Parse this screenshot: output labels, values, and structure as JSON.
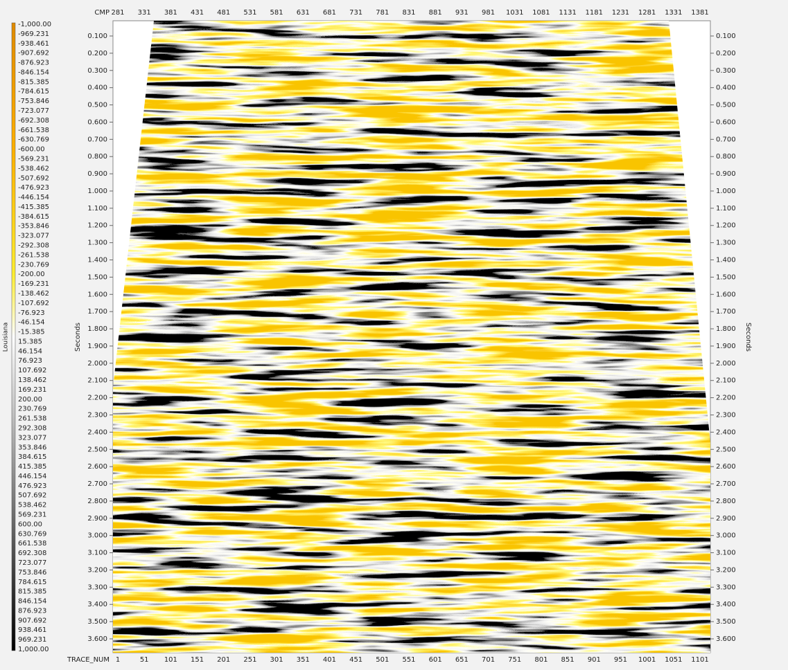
{
  "colorbar": {
    "title": "Louisiana",
    "labels": [
      "-1,000.00",
      "-969.231",
      "-938.461",
      "-907.692",
      "-876.923",
      "-846.154",
      "-815.385",
      "-784.615",
      "-753.846",
      "-723.077",
      "-692.308",
      "-661.538",
      "-630.769",
      "-600.00",
      "-569.231",
      "-538.462",
      "-507.692",
      "-476.923",
      "-446.154",
      "-415.385",
      "-384.615",
      "-353.846",
      "-323.077",
      "-292.308",
      "-261.538",
      "-230.769",
      "-200.00",
      "-169.231",
      "-138.462",
      "-107.692",
      "-76.923",
      "-46.154",
      "-15.385",
      "15.385",
      "46.154",
      "76.923",
      "107.692",
      "138.462",
      "169.231",
      "200.00",
      "230.769",
      "261.538",
      "292.308",
      "323.077",
      "353.846",
      "384.615",
      "415.385",
      "446.154",
      "476.923",
      "507.692",
      "538.462",
      "569.231",
      "600.00",
      "630.769",
      "661.538",
      "692.308",
      "723.077",
      "753.846",
      "784.615",
      "815.385",
      "846.154",
      "876.923",
      "907.692",
      "938.461",
      "969.231",
      "1,000.00"
    ]
  },
  "top_axis": {
    "label": "CMP",
    "ticks": [
      "281",
      "331",
      "381",
      "431",
      "481",
      "531",
      "581",
      "631",
      "681",
      "731",
      "781",
      "831",
      "881",
      "931",
      "981",
      "1031",
      "1081",
      "1131",
      "1181",
      "1231",
      "1281",
      "1331",
      "1381"
    ]
  },
  "bottom_axis": {
    "label": "TRACE_NUM",
    "ticks": [
      "1",
      "51",
      "101",
      "151",
      "201",
      "251",
      "301",
      "351",
      "401",
      "451",
      "501",
      "551",
      "601",
      "651",
      "701",
      "751",
      "801",
      "851",
      "901",
      "951",
      "1001",
      "1051",
      "1101"
    ]
  },
  "left_axis": {
    "label": "Seconds",
    "ticks": [
      "0.100",
      "0.200",
      "0.300",
      "0.400",
      "0.500",
      "0.600",
      "0.700",
      "0.800",
      "0.900",
      "1.000",
      "1.100",
      "1.200",
      "1.300",
      "1.400",
      "1.500",
      "1.600",
      "1.700",
      "1.800",
      "1.900",
      "2.000",
      "2.100",
      "2.200",
      "2.300",
      "2.400",
      "2.500",
      "2.600",
      "2.700",
      "2.800",
      "2.900",
      "3.000",
      "3.100",
      "3.200",
      "3.300",
      "3.400",
      "3.500",
      "3.600"
    ]
  },
  "right_axis": {
    "label": "Seconds"
  }
}
